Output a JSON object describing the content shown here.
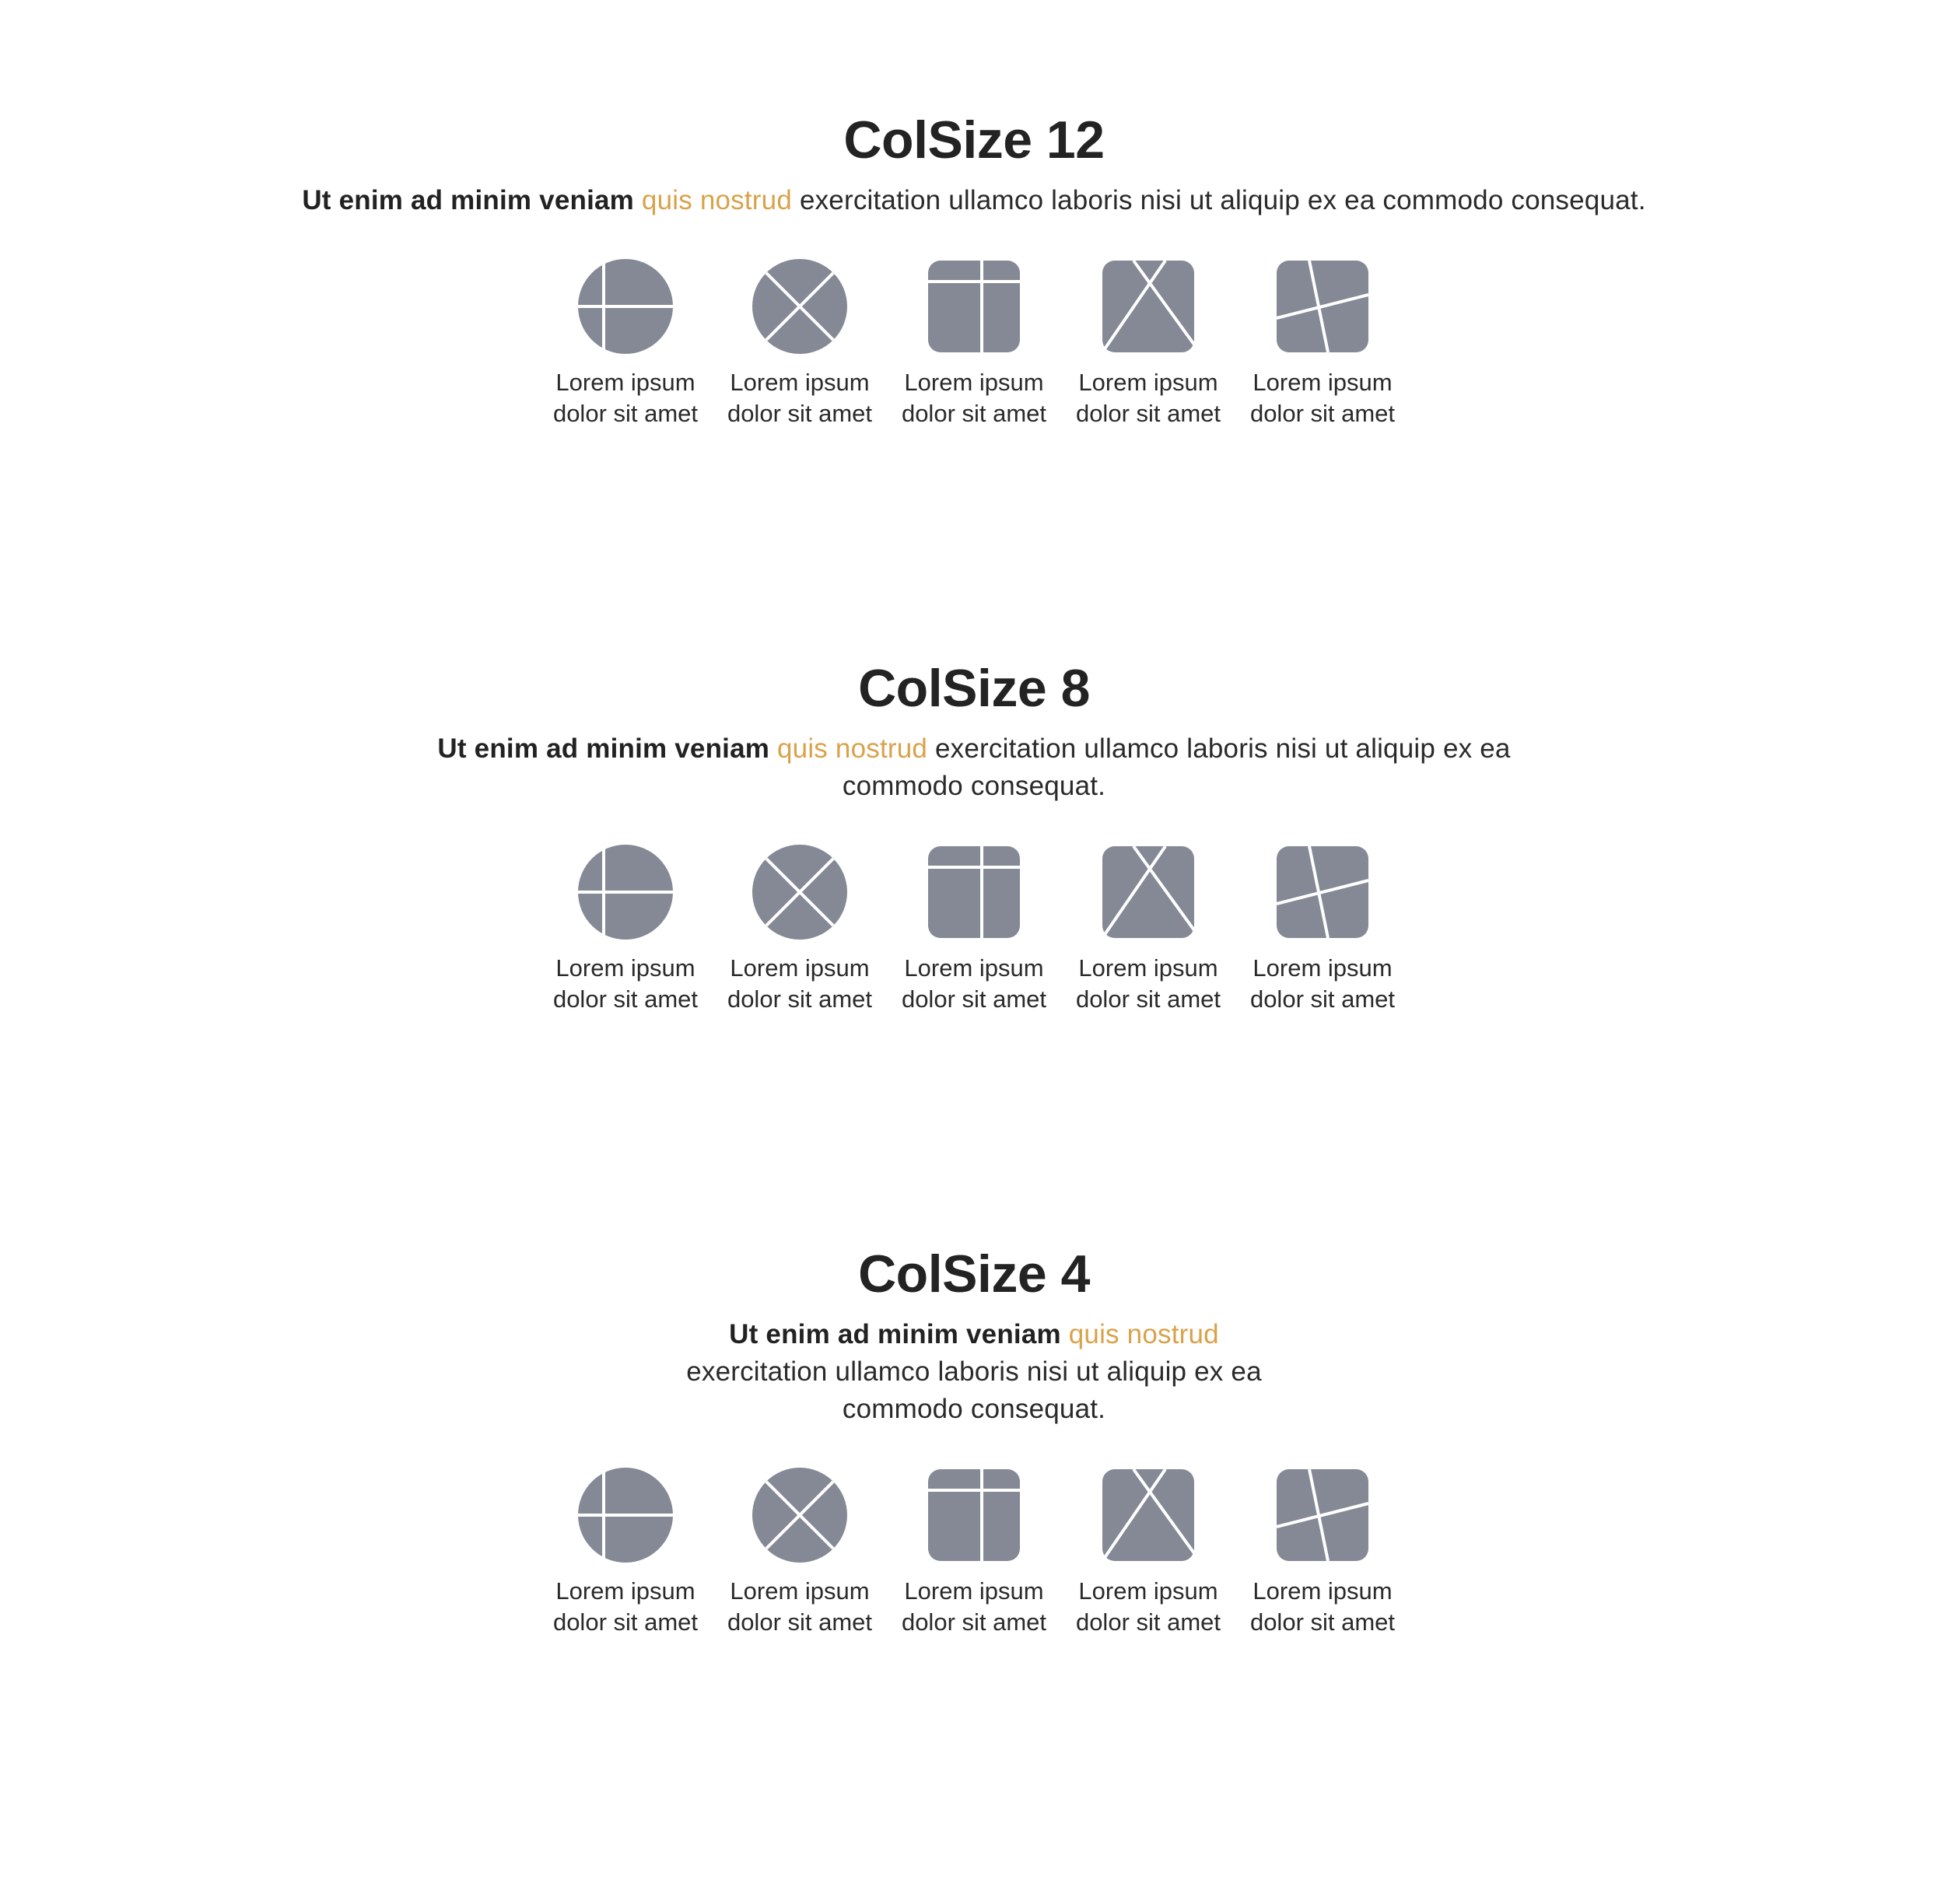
{
  "colors": {
    "accent": "#d9a24a",
    "icon_fill": "#858995",
    "icon_line": "#ffffff",
    "text": "#222222"
  },
  "sections": [
    {
      "title": "ColSize 12",
      "desc_bold": "Ut enim ad minim veniam",
      "desc_accent": "quis nostrud",
      "desc_rest": "exercitation ullamco laboris nisi ut aliquip ex ea commodo consequat.",
      "icons": [
        {
          "icon": "circle-cross-icon",
          "label": "Lorem ipsum dolor sit amet"
        },
        {
          "icon": "circle-x-icon",
          "label": "Lorem ipsum dolor sit amet"
        },
        {
          "icon": "square-grid-icon",
          "label": "Lorem ipsum dolor sit amet"
        },
        {
          "icon": "square-x-icon",
          "label": "Lorem ipsum dolor sit amet"
        },
        {
          "icon": "square-skew-icon",
          "label": "Lorem ipsum dolor sit amet"
        }
      ]
    },
    {
      "title": "ColSize 8",
      "desc_bold": "Ut enim ad minim veniam",
      "desc_accent": "quis nostrud",
      "desc_rest": "exercitation ullamco laboris nisi ut aliquip ex ea commodo consequat.",
      "icons": [
        {
          "icon": "circle-cross-icon",
          "label": "Lorem ipsum dolor sit amet"
        },
        {
          "icon": "circle-x-icon",
          "label": "Lorem ipsum dolor sit amet"
        },
        {
          "icon": "square-grid-icon",
          "label": "Lorem ipsum dolor sit amet"
        },
        {
          "icon": "square-x-icon",
          "label": "Lorem ipsum dolor sit amet"
        },
        {
          "icon": "square-skew-icon",
          "label": "Lorem ipsum dolor sit amet"
        }
      ]
    },
    {
      "title": "ColSize 4",
      "desc_bold": "Ut enim ad minim veniam",
      "desc_accent": "quis nostrud",
      "desc_rest": "exercitation ullamco laboris nisi ut aliquip ex ea commodo consequat.",
      "icons": [
        {
          "icon": "circle-cross-icon",
          "label": "Lorem ipsum dolor sit amet"
        },
        {
          "icon": "circle-x-icon",
          "label": "Lorem ipsum dolor sit amet"
        },
        {
          "icon": "square-grid-icon",
          "label": "Lorem ipsum dolor sit amet"
        },
        {
          "icon": "square-x-icon",
          "label": "Lorem ipsum dolor sit amet"
        },
        {
          "icon": "square-skew-icon",
          "label": "Lorem ipsum dolor sit amet"
        }
      ]
    }
  ]
}
